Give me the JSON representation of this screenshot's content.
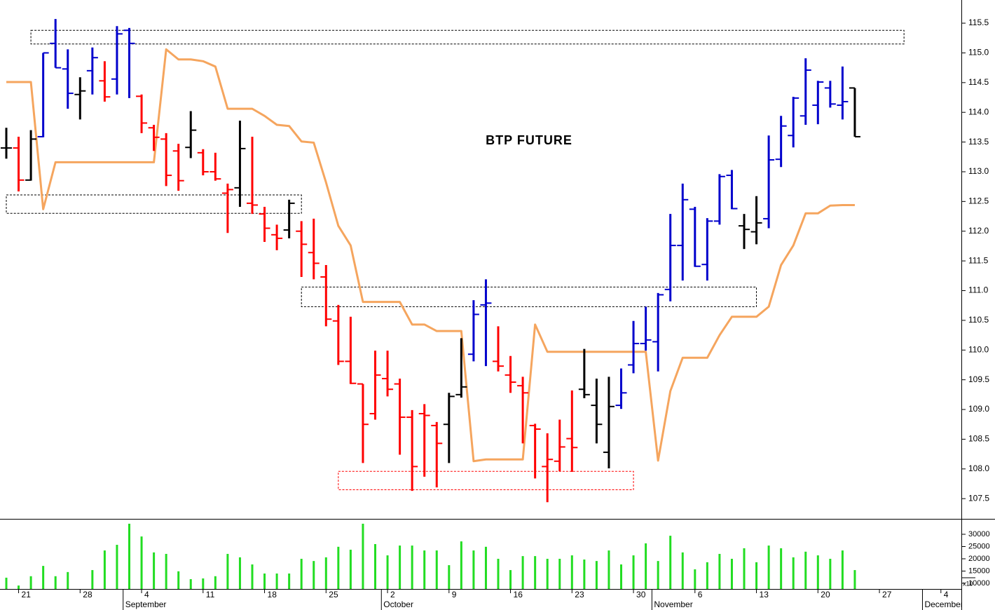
{
  "chart_data": {
    "type": "ohlc",
    "title": "BTP FUTURE",
    "categories": [
      null,
      "21",
      null,
      null,
      null,
      null,
      "28",
      null,
      null,
      null,
      null,
      "4",
      null,
      null,
      null,
      null,
      "11",
      null,
      null,
      null,
      null,
      "18",
      null,
      null,
      null,
      null,
      "25",
      null,
      null,
      null,
      null,
      "2",
      null,
      null,
      null,
      null,
      "9",
      null,
      null,
      null,
      null,
      "16",
      null,
      null,
      null,
      null,
      "23",
      null,
      null,
      null,
      null,
      "30",
      null,
      null,
      null,
      null,
      "6",
      null,
      null,
      null,
      null,
      "13",
      null,
      null,
      null,
      null,
      "20",
      null,
      null,
      null,
      null,
      "27",
      null,
      null,
      null,
      null,
      "4",
      null
    ],
    "month_labels": [
      null,
      null,
      null,
      null,
      null,
      null,
      null,
      null,
      null,
      null,
      "September",
      null,
      null,
      null,
      null,
      null,
      null,
      null,
      null,
      null,
      null,
      null,
      null,
      null,
      null,
      null,
      null,
      null,
      null,
      null,
      null,
      "October",
      null,
      null,
      null,
      null,
      null,
      null,
      null,
      null,
      null,
      null,
      null,
      null,
      null,
      null,
      null,
      null,
      null,
      null,
      null,
      null,
      null,
      "November",
      null,
      null,
      null,
      null,
      null,
      null,
      null,
      null,
      null,
      null,
      null,
      null,
      null,
      null,
      null,
      null,
      null,
      null,
      null,
      null,
      null,
      "December",
      null,
      null
    ],
    "open": [
      113.4,
      113.4,
      112.86,
      113.59,
      115.16,
      114.73,
      114.3,
      114.7,
      114.53,
      114.56,
      115.38,
      114.27,
      113.74,
      113.55,
      113.35,
      113.41,
      113.32,
      113.0,
      112.64,
      112.73,
      112.47,
      112.29,
      111.94,
      112.02,
      112.0,
      111.64,
      111.23,
      110.49,
      109.81,
      109.43,
      108.93,
      109.52,
      109.43,
      108.87,
      108.93,
      108.73,
      108.75,
      109.25,
      109.93,
      110.76,
      109.81,
      109.58,
      109.4,
      108.73,
      108.04,
      108.13,
      108.51,
      109.34,
      109.07,
      108.28,
      109.07,
      109.75,
      110.11,
      110.14,
      111.02,
      111.76,
      112.37,
      111.44,
      112.17,
      112.94,
      112.09,
      111.99,
      112.21,
      113.21,
      113.61,
      113.94,
      114.12,
      114.41,
      114.12,
      114.41,
      null,
      null,
      null,
      null,
      null,
      null,
      null,
      null
    ],
    "high": [
      113.74,
      113.59,
      113.7,
      115.0,
      115.57,
      115.06,
      114.59,
      115.09,
      114.86,
      115.45,
      115.42,
      114.3,
      113.79,
      113.65,
      113.47,
      114.02,
      113.38,
      113.32,
      112.8,
      113.86,
      113.59,
      112.41,
      112.11,
      112.53,
      112.17,
      112.21,
      111.43,
      110.76,
      110.56,
      109.43,
      109.99,
      109.99,
      109.52,
      108.99,
      109.09,
      108.79,
      109.28,
      110.2,
      110.84,
      111.19,
      110.4,
      109.9,
      109.55,
      108.76,
      108.6,
      108.83,
      109.32,
      110.02,
      109.52,
      109.55,
      109.69,
      110.49,
      110.73,
      110.96,
      112.29,
      112.8,
      112.41,
      112.22,
      112.96,
      113.03,
      112.29,
      112.59,
      113.61,
      113.94,
      114.26,
      114.91,
      114.53,
      114.53,
      114.77,
      114.41,
      null,
      null,
      null,
      null,
      null,
      null,
      null,
      null
    ],
    "low": [
      113.22,
      112.67,
      112.85,
      113.58,
      114.75,
      114.06,
      113.88,
      114.3,
      114.18,
      114.3,
      114.24,
      113.65,
      113.35,
      112.76,
      112.68,
      113.23,
      112.94,
      112.85,
      111.97,
      112.41,
      112.29,
      111.82,
      111.68,
      111.88,
      111.23,
      111.19,
      110.4,
      109.75,
      109.43,
      108.1,
      108.83,
      109.22,
      108.24,
      107.63,
      107.87,
      107.69,
      108.1,
      109.2,
      109.81,
      109.73,
      109.64,
      109.28,
      108.43,
      107.84,
      107.44,
      107.96,
      107.95,
      109.19,
      108.43,
      108.01,
      109.01,
      109.61,
      109.99,
      109.64,
      110.82,
      111.17,
      111.4,
      111.17,
      112.11,
      112.37,
      111.7,
      111.78,
      112.05,
      113.08,
      113.41,
      113.79,
      113.8,
      114.08,
      113.88,
      113.59,
      null,
      null,
      null,
      null,
      null,
      null,
      null,
      null
    ],
    "close": [
      113.4,
      112.86,
      113.55,
      115.0,
      114.75,
      114.32,
      114.36,
      114.92,
      114.26,
      115.32,
      115.16,
      113.82,
      113.58,
      112.94,
      112.85,
      113.7,
      113.0,
      112.88,
      112.7,
      113.39,
      112.44,
      112.05,
      111.88,
      112.47,
      111.78,
      111.46,
      110.52,
      109.81,
      109.44,
      108.75,
      109.58,
      109.34,
      108.87,
      108.04,
      108.9,
      108.43,
      109.22,
      109.38,
      110.6,
      110.79,
      109.73,
      109.46,
      109.28,
      108.67,
      108.16,
      108.37,
      108.36,
      109.25,
      108.75,
      109.05,
      109.28,
      110.11,
      110.17,
      110.93,
      111.76,
      112.53,
      111.41,
      112.17,
      112.92,
      112.38,
      112.03,
      112.14,
      113.2,
      113.77,
      114.24,
      114.71,
      114.51,
      114.14,
      114.18,
      113.59,
      null,
      null,
      null,
      null,
      null,
      null,
      null,
      null
    ],
    "bar_colors": [
      "#000000",
      "#ff0000",
      "#000000",
      "#0000cc",
      "#0000cc",
      "#0000cc",
      "#000000",
      "#0000cc",
      "#ff0000",
      "#0000cc",
      "#0000cc",
      "#ff0000",
      "#ff0000",
      "#ff0000",
      "#ff0000",
      "#000000",
      "#ff0000",
      "#ff0000",
      "#ff0000",
      "#000000",
      "#ff0000",
      "#ff0000",
      "#ff0000",
      "#000000",
      "#ff0000",
      "#ff0000",
      "#ff0000",
      "#ff0000",
      "#ff0000",
      "#ff0000",
      "#ff0000",
      "#ff0000",
      "#ff0000",
      "#ff0000",
      "#ff0000",
      "#ff0000",
      "#000000",
      "#000000",
      "#0000cc",
      "#0000cc",
      "#ff0000",
      "#ff0000",
      "#ff0000",
      "#ff0000",
      "#ff0000",
      "#ff0000",
      "#ff0000",
      "#000000",
      "#000000",
      "#000000",
      "#0000cc",
      "#0000cc",
      "#0000cc",
      "#0000cc",
      "#0000cc",
      "#0000cc",
      "#0000cc",
      "#0000cc",
      "#0000cc",
      "#0000cc",
      "#000000",
      "#000000",
      "#0000cc",
      "#0000cc",
      "#0000cc",
      "#0000cc",
      "#0000cc",
      "#0000cc",
      "#0000cc",
      "#000000",
      null,
      null,
      null,
      null,
      null,
      null,
      null,
      null
    ],
    "overlay": {
      "color": "#f5a55e",
      "values": [
        114.51,
        114.51,
        114.51,
        112.37,
        113.16,
        113.16,
        113.16,
        113.16,
        113.16,
        113.16,
        113.16,
        113.16,
        113.16,
        115.06,
        114.89,
        114.89,
        114.86,
        114.77,
        114.06,
        114.06,
        114.06,
        113.94,
        113.79,
        113.77,
        113.51,
        113.49,
        112.82,
        112.09,
        111.76,
        110.81,
        110.81,
        110.81,
        110.81,
        110.43,
        110.43,
        110.32,
        110.32,
        110.32,
        108.13,
        108.16,
        108.16,
        108.16,
        108.16,
        110.43,
        109.97,
        109.97,
        109.97,
        109.97,
        109.97,
        109.97,
        109.97,
        109.97,
        109.97,
        108.14,
        109.31,
        109.87,
        109.87,
        109.87,
        110.25,
        110.56,
        110.56,
        110.56,
        110.73,
        111.43,
        111.76,
        112.3,
        112.3,
        112.43,
        112.44,
        112.44,
        null,
        null,
        null,
        null,
        null,
        null,
        null,
        null
      ]
    },
    "boxes": [
      {
        "low": 115.15,
        "high": 115.38,
        "start": 2,
        "end": 73,
        "color": "#000000"
      },
      {
        "low": 112.3,
        "high": 112.61,
        "start": 0,
        "end": 24,
        "color": "#000000"
      },
      {
        "low": 110.73,
        "high": 111.06,
        "start": 24,
        "end": 61,
        "color": "#000000"
      },
      {
        "low": 107.65,
        "high": 107.96,
        "start": 27,
        "end": 51,
        "color": "#ff0000"
      }
    ],
    "ylim": [
      107.16,
      115.89
    ],
    "yticks": [
      107.5,
      {
        "value": 108,
        "label": "108.0"
      },
      108.5,
      {
        "value": 109,
        "label": "109.0"
      },
      109.5,
      {
        "value": 110,
        "label": "110.0"
      },
      110.5,
      {
        "value": 111,
        "label": "111.0"
      },
      111.5,
      {
        "value": 112,
        "label": "112.0"
      },
      112.5,
      {
        "value": 113,
        "label": "113.0"
      },
      113.5,
      {
        "value": 114,
        "label": "114.0"
      },
      114.5,
      {
        "value": 115,
        "label": "115.0"
      },
      115.5
    ],
    "volume": {
      "color": "#22dd22",
      "scale_note": "x10",
      "values": [
        12300,
        9100,
        12900,
        17100,
        12900,
        14600,
        null,
        15400,
        23400,
        25700,
        34300,
        29100,
        22600,
        22000,
        14900,
        11700,
        12000,
        12900,
        22000,
        20600,
        17700,
        14000,
        14000,
        14000,
        20000,
        19100,
        20600,
        24900,
        23700,
        34300,
        26000,
        21400,
        25400,
        25400,
        23400,
        23400,
        17400,
        27100,
        23400,
        24900,
        20000,
        15400,
        21100,
        21100,
        20000,
        20000,
        21400,
        19700,
        19100,
        23400,
        17700,
        21400,
        26300,
        19100,
        29400,
        22600,
        15700,
        18600,
        22000,
        20000,
        24300,
        18600,
        25400,
        24300,
        20600,
        22900,
        21400,
        20000,
        23400,
        15400,
        null,
        null,
        null,
        null,
        null,
        null,
        null,
        null
      ],
      "ylim": [
        7700,
        36000
      ],
      "yticks": [
        10000,
        15000,
        20000,
        25000,
        30000
      ]
    }
  }
}
